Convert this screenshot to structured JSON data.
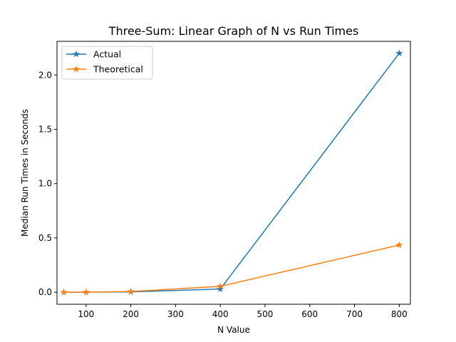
{
  "chart_data": {
    "type": "line",
    "title": "Three-Sum: Linear Graph of N vs Run Times",
    "xlabel": "N Value",
    "ylabel": "Median Run Times in Seconds",
    "xlim": [
      35,
      825
    ],
    "ylim": [
      -0.11,
      2.31
    ],
    "x_ticks": [
      100,
      200,
      300,
      400,
      500,
      600,
      700,
      800
    ],
    "y_ticks": [
      0.0,
      0.5,
      1.0,
      1.5,
      2.0
    ],
    "x_tick_labels": [
      "100",
      "200",
      "300",
      "400",
      "500",
      "600",
      "700",
      "800"
    ],
    "y_tick_labels": [
      "0.0",
      "0.5",
      "1.0",
      "1.5",
      "2.0"
    ],
    "grid": false,
    "legend_position": "top-left",
    "marker": "star",
    "x": [
      50,
      100,
      200,
      400,
      800
    ],
    "series": [
      {
        "name": "Actual",
        "color": "#1f77b4",
        "values": [
          0.0005,
          0.001,
          0.004,
          0.03,
          2.2
        ]
      },
      {
        "name": "Theoretical",
        "color": "#ff7f0e",
        "values": [
          0.0009,
          0.0015,
          0.007,
          0.055,
          0.435
        ]
      }
    ]
  }
}
